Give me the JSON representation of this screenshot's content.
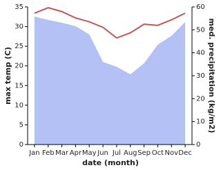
{
  "chart_data": {
    "type": "area-line",
    "x_label": "date (month)",
    "y_label": "max temp (C)",
    "y2_label": "med. precipitation (kg/m2)",
    "categories": [
      "Jan",
      "Feb",
      "Mar",
      "Apr",
      "May",
      "Jun",
      "Jul",
      "Aug",
      "Sep",
      "Oct",
      "Nov",
      "Dec"
    ],
    "ylim": [
      0,
      35
    ],
    "yticks": [
      0,
      5,
      10,
      15,
      20,
      25,
      30,
      35
    ],
    "y2lim": [
      0,
      60
    ],
    "y2ticks": [
      0,
      10,
      20,
      30,
      40,
      50,
      60
    ],
    "series": [
      {
        "name": "med. precipitation",
        "axis": "y2",
        "kind": "area",
        "color": "#b3c1f5",
        "values": [
          55.8,
          54.3,
          53.1,
          51.6,
          48,
          36,
          33.9,
          30.6,
          35.4,
          43.5,
          47.4,
          53.4
        ]
      },
      {
        "name": "max temp",
        "kind": "line",
        "color": "#c75454",
        "values": [
          33.4,
          34.8,
          33.8,
          32.2,
          31.2,
          29.8,
          27.1,
          28.4,
          30.6,
          30.3,
          31.7,
          33.4
        ]
      }
    ]
  }
}
